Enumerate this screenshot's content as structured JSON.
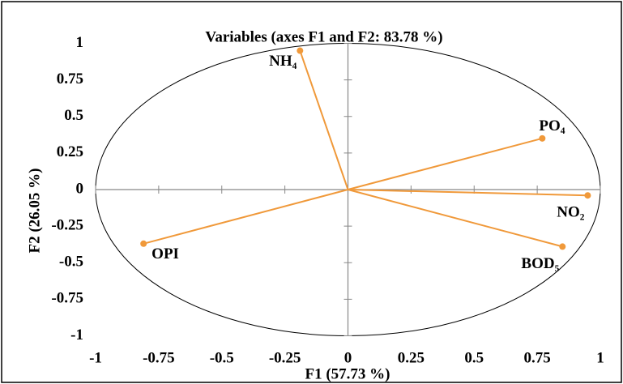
{
  "chart_data": {
    "type": "scatter",
    "title": "Variables (axes F1 and F2: 83.78 %)",
    "x_label": "F1 (57.73 %)",
    "y_label": "F2 (26.05 %)",
    "categories": [
      "NH₄",
      "PO₄",
      "NO₂",
      "BOD₅",
      "OPI"
    ],
    "x": [
      -0.19,
      0.77,
      0.95,
      0.85,
      -0.81
    ],
    "values": [
      0.95,
      0.35,
      -0.04,
      -0.39,
      -0.37
    ],
    "color": "#f0993a",
    "xlim": [
      -1,
      1
    ],
    "ylim": [
      -1,
      1
    ],
    "xticks": [
      -1,
      -0.75,
      -0.5,
      -0.25,
      0,
      0.25,
      0.5,
      0.75,
      1
    ],
    "yticks": [
      -1,
      -0.75,
      -0.5,
      -0.25,
      0,
      0.25,
      0.5,
      0.75,
      1
    ],
    "grid": false
  }
}
